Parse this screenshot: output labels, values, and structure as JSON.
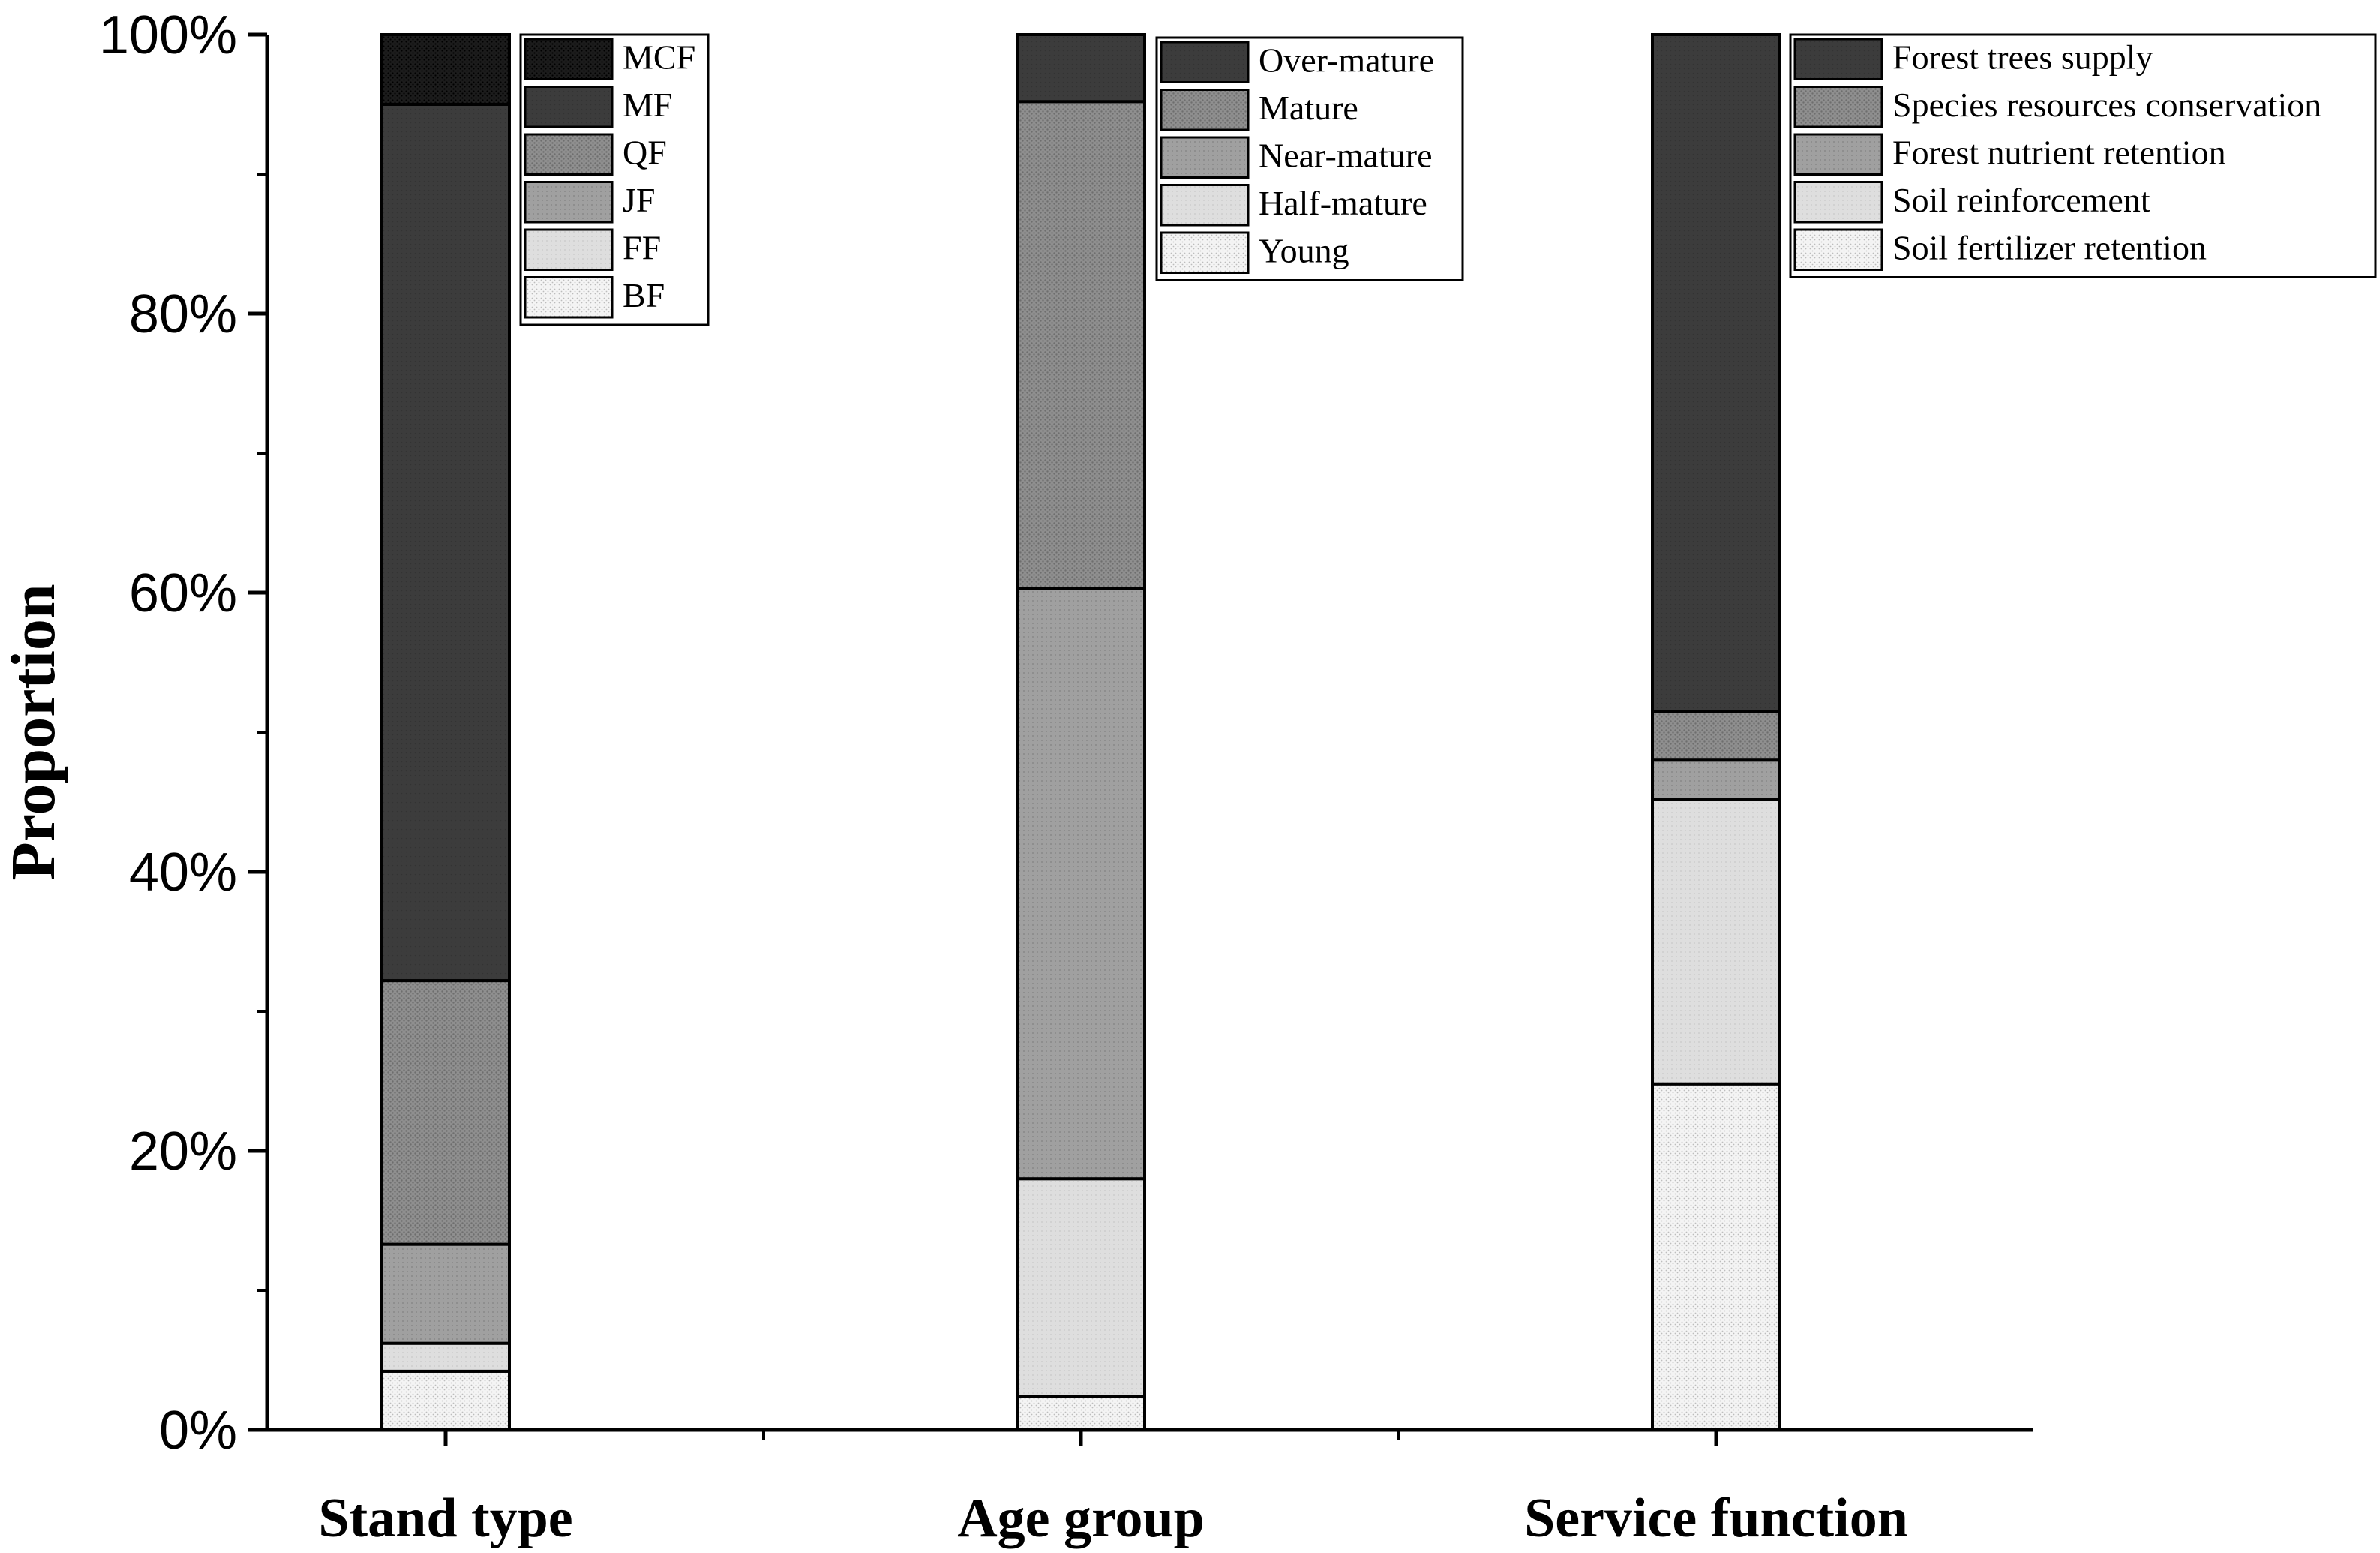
{
  "chart_data": {
    "type": "bar",
    "stacked": true,
    "title": "",
    "xlabel": "",
    "ylabel": "Proportion",
    "ylim": [
      0,
      100
    ],
    "y_ticks": [
      "0%",
      "20%",
      "40%",
      "60%",
      "80%",
      "100%"
    ],
    "y_tick_values": [
      0,
      20,
      40,
      60,
      80,
      100
    ],
    "categories": [
      "Stand type",
      "Age group",
      "Service function"
    ],
    "groups": [
      {
        "category": "Stand type",
        "segments": [
          {
            "name": "BF",
            "value": 4.2,
            "pattern": "dots-light"
          },
          {
            "name": "FF",
            "value": 2.0,
            "pattern": "light"
          },
          {
            "name": "JF",
            "value": 7.1,
            "pattern": "mid"
          },
          {
            "name": "QF",
            "value": 18.9,
            "pattern": "mid-dense"
          },
          {
            "name": "MF",
            "value": 62.8,
            "pattern": "dark"
          },
          {
            "name": "MCF",
            "value": 5.0,
            "pattern": "black"
          }
        ],
        "legend": [
          "MCF",
          "MF",
          "QF",
          "JF",
          "FF",
          "BF"
        ]
      },
      {
        "category": "Age group",
        "segments": [
          {
            "name": "Young",
            "value": 2.4,
            "pattern": "dots-light"
          },
          {
            "name": "Half-mature",
            "value": 15.6,
            "pattern": "light"
          },
          {
            "name": "Near-mature",
            "value": 42.3,
            "pattern": "mid"
          },
          {
            "name": "Mature",
            "value": 34.9,
            "pattern": "mid-dense"
          },
          {
            "name": "Over-mature",
            "value": 4.8,
            "pattern": "dark"
          }
        ],
        "legend": [
          "Over-mature",
          "Mature",
          "Near-mature",
          "Half-mature",
          "Young"
        ]
      },
      {
        "category": "Service function",
        "segments": [
          {
            "name": "Soil fertilizer retention",
            "value": 24.8,
            "pattern": "dots-light"
          },
          {
            "name": "Soil reinforcement",
            "value": 20.4,
            "pattern": "light"
          },
          {
            "name": "Forest nutrient retention",
            "value": 2.8,
            "pattern": "mid"
          },
          {
            "name": "Species resources conservation",
            "value": 3.5,
            "pattern": "mid-dense"
          },
          {
            "name": "Forest trees supply",
            "value": 48.5,
            "pattern": "dark"
          }
        ],
        "legend": [
          "Forest trees supply",
          "Species resources conservation",
          "Forest nutrient retention",
          "Soil reinforcement",
          "Soil fertilizer retention"
        ]
      }
    ]
  },
  "colors": {
    "black": "#141414",
    "dark": "#3c3c3c",
    "mid-dense": "#8a8a8a",
    "mid": "#9c9c9c",
    "light": "#dcdcdc",
    "dots-light": "#f1f1f1",
    "axis": "#000000"
  }
}
